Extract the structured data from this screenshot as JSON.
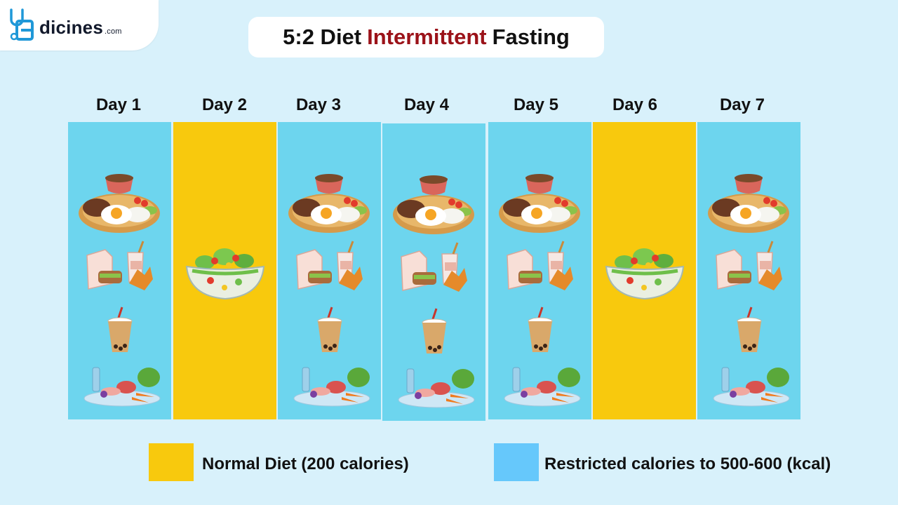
{
  "logo": {
    "wordmark": "dicines",
    "suffix": ".com"
  },
  "title": {
    "part1": "5:2 Diet",
    "accent": "Intermittent",
    "part2": "Fasting"
  },
  "colors": {
    "restricted": "#6dd5ee",
    "normal": "#f8c90d",
    "title_accent": "#9b1219",
    "legend_restricted": "#66c8fb"
  },
  "days": [
    {
      "label": "Day 1",
      "type": "restricted"
    },
    {
      "label": "Day 2",
      "type": "normal"
    },
    {
      "label": "Day 3",
      "type": "restricted"
    },
    {
      "label": "Day 4",
      "type": "restricted"
    },
    {
      "label": "Day 5",
      "type": "restricted"
    },
    {
      "label": "Day 6",
      "type": "normal"
    },
    {
      "label": "Day 7",
      "type": "restricted"
    }
  ],
  "food_icons": {
    "restricted": [
      "meal-plate-icon",
      "takeout-meal-icon",
      "boba-drink-icon",
      "fresh-groceries-icon"
    ],
    "normal": [
      "salad-bowl-icon"
    ]
  },
  "legend": [
    {
      "label": "Normal Diet (200 calories)",
      "type": "normal"
    },
    {
      "label": "Restricted calories to 500-600 (kcal)",
      "type": "restricted"
    }
  ]
}
